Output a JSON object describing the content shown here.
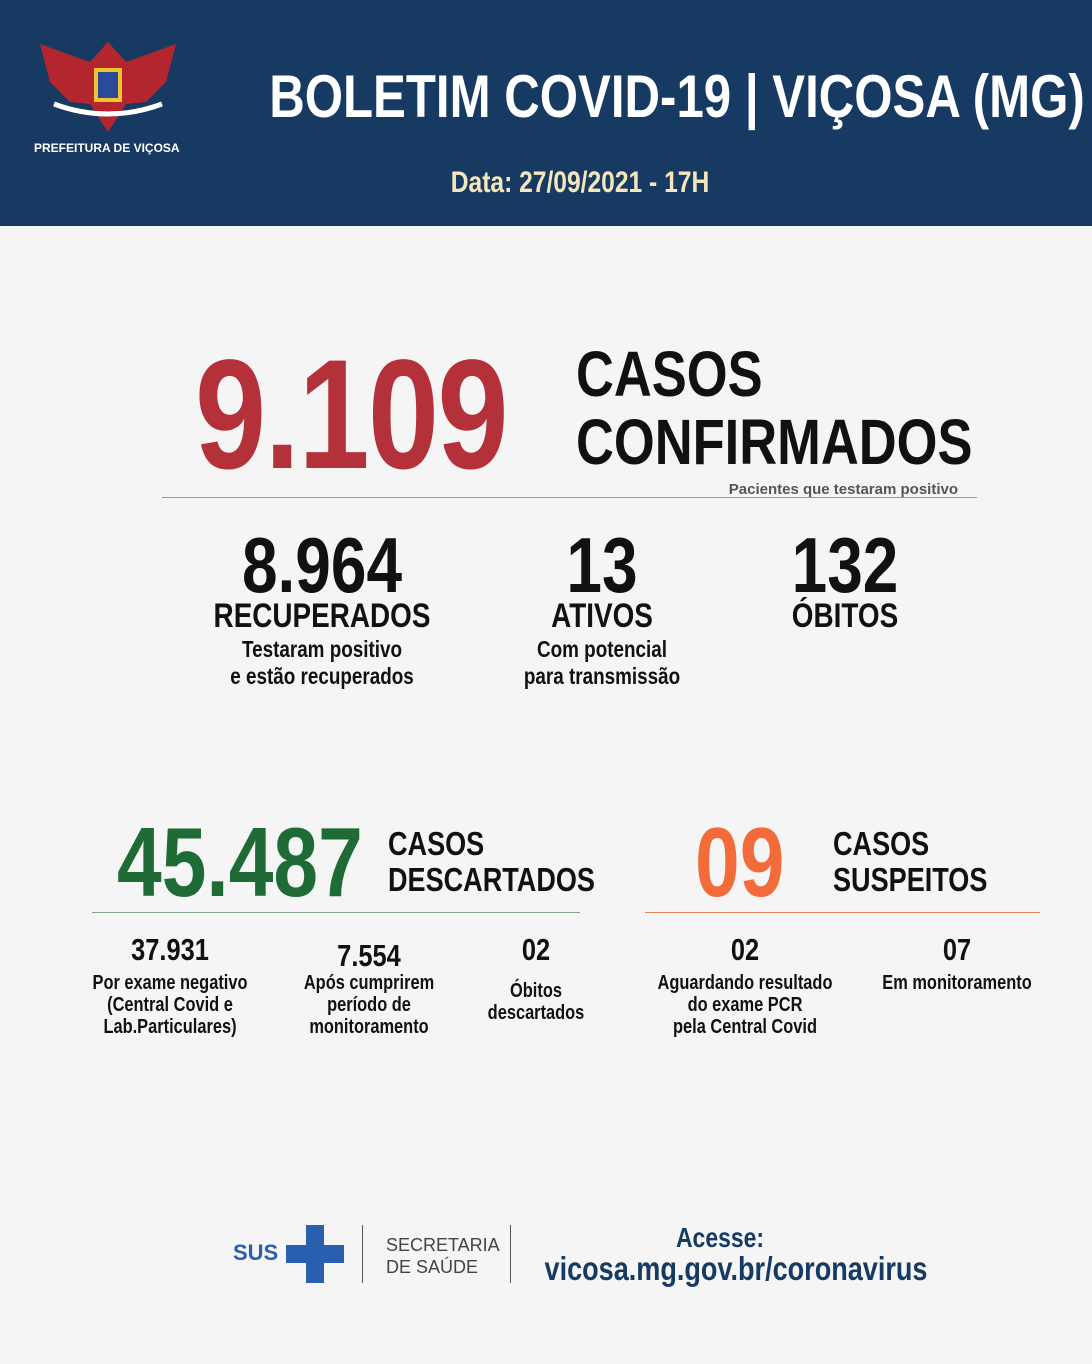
{
  "header": {
    "logo_text": "PREFEITURA DE VIÇOSA",
    "title": "BOLETIM COVID-19 | VIÇOSA (MG)",
    "date": "Data: 27/09/2021 - 17H"
  },
  "confirmed": {
    "number": "9.109",
    "label_lines": [
      "CASOS",
      "CONFIRMADOS"
    ],
    "note": "Pacientes que testaram positivo"
  },
  "stats": [
    {
      "number": "8.964",
      "label": "RECUPERADOS",
      "desc": [
        "Testaram positivo",
        "e estão recuperados"
      ]
    },
    {
      "number": "13",
      "label": "ATIVOS",
      "desc": [
        "Com potencial",
        "para transmissão"
      ]
    },
    {
      "number": "132",
      "label": "ÓBITOS"
    }
  ],
  "discarded": {
    "number": "45.487",
    "label_lines": [
      "CASOS",
      "DESCARTADOS"
    ],
    "breakdown": [
      {
        "number": "37.931",
        "desc": [
          "Por exame negativo",
          "(Central Covid e",
          "Lab.Particulares)"
        ]
      },
      {
        "number": "7.554",
        "desc": [
          "Após cumprirem",
          "período de",
          "monitoramento"
        ]
      },
      {
        "number": "02",
        "desc": [
          "Óbitos",
          "descartados"
        ]
      }
    ]
  },
  "suspected": {
    "number": "09",
    "label_lines": [
      "CASOS",
      "SUSPEITOS"
    ],
    "breakdown": [
      {
        "number": "02",
        "desc": [
          "Aguardando resultado",
          "do exame PCR",
          "pela Central Covid"
        ]
      },
      {
        "number": "07",
        "desc": [
          "Em monitoramento"
        ]
      }
    ]
  },
  "footer": {
    "sus": "SUS",
    "secretaria": [
      "SECRETARIA",
      "DE SAÚDE"
    ],
    "access": "Acesse:",
    "url": "vicosa.mg.gov.br/coronavirus"
  }
}
